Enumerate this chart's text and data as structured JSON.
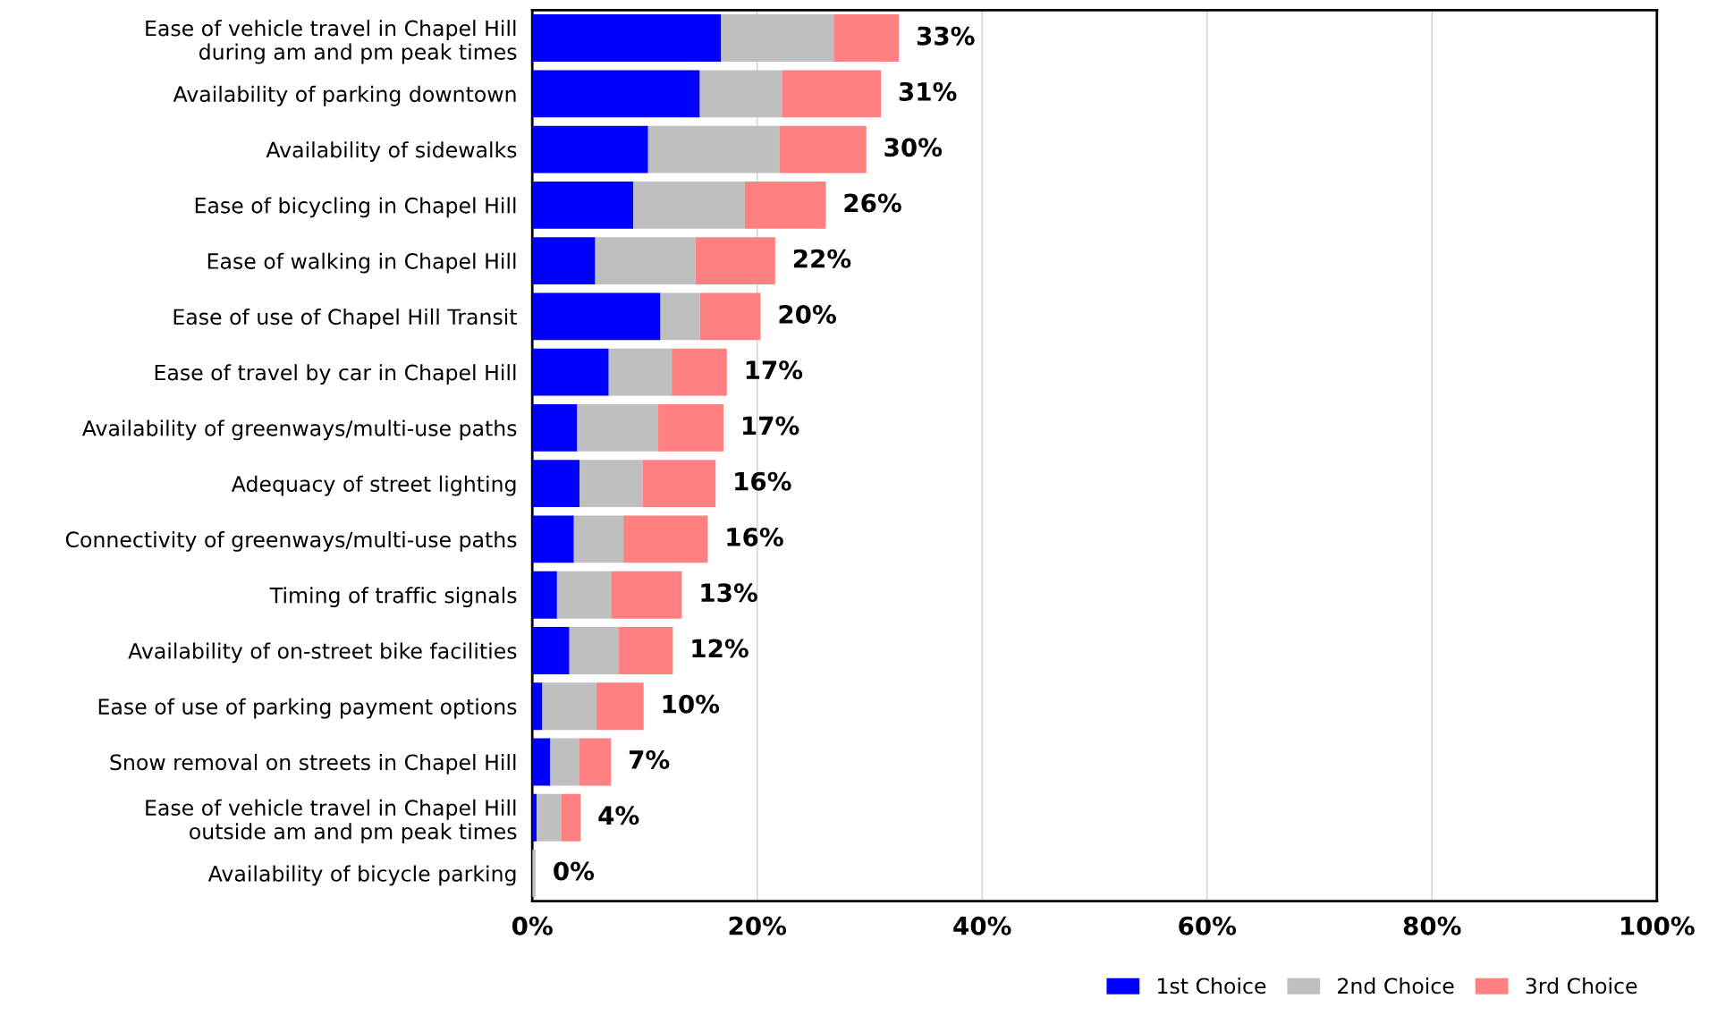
{
  "chart_data": {
    "type": "bar",
    "orientation": "horizontal",
    "stacked": true,
    "categories": [
      "Ease of vehicle travel in Chapel Hill\nduring am and pm peak times",
      "Availability of parking downtown",
      "Availability of sidewalks",
      "Ease of bicycling in Chapel Hill",
      "Ease of walking in Chapel Hill",
      "Ease of use of Chapel Hill Transit",
      "Ease of travel by car in Chapel Hill",
      "Availability of greenways/multi-use paths",
      "Adequacy of street lighting",
      "Connectivity of greenways/multi-use paths",
      "Timing of traffic signals",
      "Availability of on-street bike facilities",
      "Ease of use of parking payment options",
      "Snow removal on streets in Chapel Hill",
      "Ease of vehicle travel in Chapel Hill\noutside am and pm peak times",
      "Availability of bicycle parking"
    ],
    "series": [
      {
        "name": "1st Choice",
        "color": "#0000ff",
        "values": [
          16.8,
          14.9,
          10.3,
          9.0,
          5.6,
          11.4,
          6.8,
          4.0,
          4.2,
          3.7,
          2.2,
          3.3,
          0.9,
          1.6,
          0.4,
          null
        ]
      },
      {
        "name": "2nd Choice",
        "color": "#bfbfbf",
        "values": [
          10.0,
          7.3,
          11.7,
          9.9,
          8.9,
          3.5,
          5.6,
          7.2,
          5.6,
          4.4,
          4.8,
          4.4,
          4.8,
          2.6,
          2.2,
          0.3
        ]
      },
      {
        "name": "3rd Choice",
        "color": "#ff8080",
        "values": [
          5.8,
          8.8,
          7.7,
          7.2,
          7.1,
          5.4,
          4.9,
          5.8,
          6.5,
          7.5,
          6.3,
          4.8,
          4.2,
          2.8,
          1.7,
          0
        ]
      }
    ],
    "totals": [
      "33%",
      "31%",
      "30%",
      "26%",
      "22%",
      "20%",
      "17%",
      "17%",
      "16%",
      "16%",
      "13%",
      "12%",
      "10%",
      "7%",
      "4%",
      "0%"
    ],
    "xlim": [
      0,
      100
    ],
    "xticks": [
      {
        "value": 0,
        "label": "0%"
      },
      {
        "value": 20,
        "label": "20%"
      },
      {
        "value": 40,
        "label": "40%"
      },
      {
        "value": 60,
        "label": "60%"
      },
      {
        "value": 80,
        "label": "80%"
      },
      {
        "value": 100,
        "label": "100%"
      }
    ],
    "grid": "x",
    "legend": "bottom right"
  }
}
